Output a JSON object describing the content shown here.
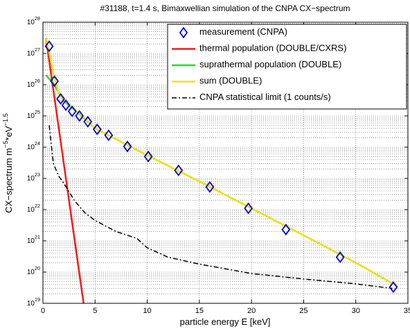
{
  "chart_data": {
    "type": "line",
    "title": "#31188, t=1.4 s, Bimaxwellian simulation of the CNPA CX−spectrum",
    "x_label": "particle energy E [keV]",
    "y_label": "CX−spectrum m^−5*eV^−1.5",
    "xlim": [
      0,
      35
    ],
    "xticks": [
      0,
      5,
      10,
      15,
      20,
      25,
      30,
      35
    ],
    "ylim": [
      1e+19,
      1e+28
    ],
    "yticks": [
      {
        "value": 1e+19,
        "label": "10^19"
      },
      {
        "value": 1e+20,
        "label": "10^20"
      },
      {
        "value": 1e+21,
        "label": "10^21"
      },
      {
        "value": 1e+22,
        "label": "10^22"
      },
      {
        "value": 1e+23,
        "label": "10^23"
      },
      {
        "value": 1e+24,
        "label": "10^24"
      },
      {
        "value": 1e+25,
        "label": "10^25"
      },
      {
        "value": 1e+26,
        "label": "10^26"
      },
      {
        "value": 1e+27,
        "label": "10^27"
      },
      {
        "value": 1e+28,
        "label": "10^28"
      }
    ],
    "log_y": true,
    "grid": true,
    "legend": "upper right",
    "series": [
      {
        "name": "measurement (CNPA)",
        "color": "#0000cc",
        "marker": "diamond",
        "x": [
          0.6,
          1.1,
          1.7,
          2.2,
          2.8,
          3.5,
          4.3,
          5.2,
          6.3,
          8.1,
          10.1,
          13,
          16,
          19.7,
          23.3,
          28.5,
          33.6
        ],
        "values": [
          1.7e+27,
          1.3e+26,
          3.5e+25,
          2.2e+25,
          1.4e+25,
          1e+25,
          6.5e+24,
          3.7e+24,
          2.4e+24,
          1.05e+24,
          5e+23,
          1.8e+23,
          5.3e+22,
          1.1e+22,
          2.3e+21,
          3e+20,
          3.3e+19
        ]
      },
      {
        "name": "thermal population (DOUBLE/CXRS)",
        "color": "#ee1c1c",
        "style": "solid",
        "x": [
          0.3,
          1,
          2,
          3,
          3.9
        ],
        "values": [
          3e+27,
          6.8e+25,
          3e+23,
          1.3e+21,
          1e+19
        ]
      },
      {
        "name": "suprathermal population (DOUBLE)",
        "color": "#22dd22",
        "style": "solid",
        "x": [
          0.3,
          1,
          2,
          3,
          5,
          10,
          15,
          20,
          25,
          30,
          34
        ],
        "values": [
          2e+26,
          1.1e+26,
          3e+25,
          1.6e+25,
          4e+24,
          5.5e+23,
          8e+22,
          1.1e+22,
          1.5e+21,
          2e+20,
          3.5e+19
        ]
      },
      {
        "name": "sum (DOUBLE)",
        "color": "#f2e01a",
        "style": "solid",
        "x": [
          0.3,
          0.6,
          1,
          1.5,
          2,
          3,
          5,
          10,
          15,
          20,
          25,
          30,
          34
        ],
        "values": [
          3.2e+27,
          1.1e+27,
          2.3e+26,
          5.5e+25,
          3.3e+25,
          1.7e+25,
          4e+24,
          5.5e+23,
          8e+22,
          1.1e+22,
          1.5e+21,
          2e+20,
          3.5e+19
        ]
      },
      {
        "name": "CNPA statistical limit (1 counts/s)",
        "color": "#000000",
        "style": "dashdot",
        "x": [
          0.6,
          1,
          1.5,
          2,
          3,
          4,
          5,
          7,
          9,
          10,
          12,
          15,
          20,
          25,
          30,
          33.5
        ],
        "values": [
          5e+24,
          3e+23,
          1.2e+23,
          7e+22,
          2e+22,
          8e+21,
          4.5e+21,
          2e+21,
          1.2e+21,
          6e+20,
          3e+20,
          1.8e+20,
          9e+19,
          6e+19,
          4.2e+19,
          3e+19
        ]
      }
    ]
  }
}
